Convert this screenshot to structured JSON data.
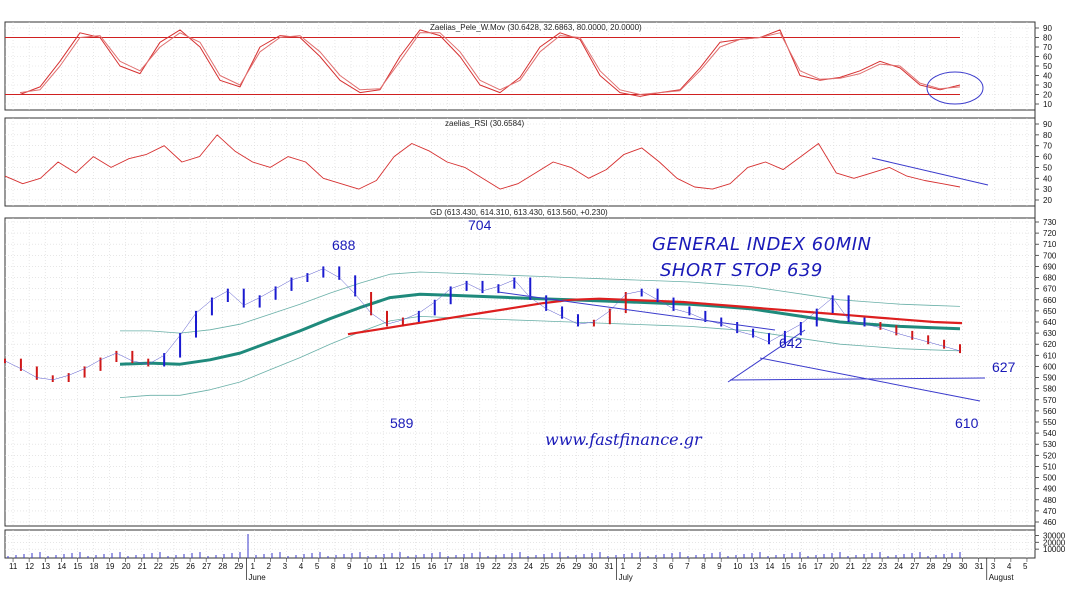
{
  "chart_data": [
    {
      "type": "line",
      "title": "Zaelias_Pele_W.Mov (30.6428, 32.6863, 80.0000, 20.0000)",
      "ylim": [
        10,
        90
      ],
      "yticks": [
        "10",
        "20",
        "30",
        "40",
        "50",
        "60",
        "70",
        "80",
        "90"
      ],
      "series": [
        {
          "values": [
            20,
            28,
            55,
            85,
            80,
            50,
            42,
            75,
            88,
            70,
            35,
            28,
            70,
            82,
            80,
            60,
            35,
            22,
            25,
            60,
            88,
            82,
            60,
            30,
            22,
            38,
            70,
            85,
            78,
            40,
            22,
            18,
            22,
            25,
            48,
            75,
            78,
            80,
            88,
            40,
            35,
            38,
            45,
            55,
            48,
            30,
            25,
            30
          ]
        },
        {
          "values": [
            22,
            25,
            50,
            80,
            82,
            55,
            45,
            70,
            85,
            75,
            40,
            30,
            65,
            80,
            82,
            65,
            40,
            25,
            26,
            55,
            85,
            85,
            65,
            35,
            25,
            35,
            65,
            82,
            80,
            45,
            25,
            20,
            22,
            24,
            45,
            70,
            78,
            80,
            85,
            45,
            36,
            37,
            42,
            52,
            50,
            32,
            26,
            28
          ]
        }
      ],
      "hlines": [
        20,
        80
      ],
      "grid": true
    },
    {
      "type": "line",
      "title": "zaelias_RSI (30.6584)",
      "ylim": [
        20,
        90
      ],
      "yticks": [
        "20",
        "30",
        "40",
        "50",
        "60",
        "70",
        "80",
        "90"
      ],
      "series": [
        {
          "values": [
            42,
            35,
            40,
            55,
            45,
            60,
            50,
            58,
            62,
            70,
            55,
            60,
            80,
            65,
            55,
            50,
            60,
            55,
            40,
            35,
            30,
            38,
            60,
            72,
            65,
            55,
            50,
            40,
            30,
            35,
            45,
            55,
            50,
            40,
            48,
            62,
            68,
            55,
            40,
            32,
            30,
            35,
            50,
            55,
            48,
            60,
            72,
            45,
            40,
            45,
            50,
            42,
            38,
            35,
            32
          ]
        }
      ],
      "grid": true
    },
    {
      "type": "line",
      "title": "GD (613.430, 614.310, 613.430, 613.560, +0.230)",
      "ylim": [
        460,
        730
      ],
      "yticks": [
        "460",
        "470",
        "480",
        "490",
        "500",
        "510",
        "520",
        "530",
        "540",
        "550",
        "560",
        "570",
        "580",
        "590",
        "600",
        "610",
        "620",
        "630",
        "640",
        "650",
        "660",
        "670",
        "680",
        "690",
        "700",
        "710",
        "720",
        "730"
      ],
      "series": [
        {
          "values": [
            605,
            598,
            590,
            588,
            592,
            598,
            606,
            612,
            605,
            602,
            610,
            628,
            648,
            660,
            668,
            655,
            662,
            670,
            678,
            682,
            688,
            680,
            665,
            648,
            638,
            642,
            648,
            658,
            670,
            675,
            668,
            672,
            678,
            662,
            652,
            645,
            638,
            640,
            650,
            665,
            668,
            660,
            652,
            648,
            642,
            638,
            632,
            628,
            622,
            630,
            638,
            650,
            662,
            642,
            638,
            635,
            630,
            626,
            622,
            618,
            614
          ]
        },
        {
          "values": [
            602,
            603,
            602,
            606,
            612,
            622,
            632,
            643,
            653,
            662,
            665,
            664,
            663,
            662,
            661,
            660,
            659,
            658,
            657,
            656,
            654,
            652,
            648,
            644,
            640,
            638,
            636,
            635,
            634
          ]
        },
        {
          "values": [
            629,
            633,
            637,
            641,
            645,
            649,
            653,
            657,
            660,
            661,
            660,
            659,
            658,
            656,
            654,
            652,
            650,
            648,
            646,
            644,
            642,
            640,
            639
          ]
        }
      ],
      "annotations": [
        "688",
        "704",
        "589",
        "642",
        "627",
        "610",
        "GENERAL INDEX 60MIN",
        "SHORT STOP 639",
        "www.fastfinance.gr"
      ],
      "grid": true
    },
    {
      "type": "bar",
      "ylim": [
        0,
        35000
      ],
      "yticks": [
        "10000",
        "20000",
        "30000"
      ],
      "unit": "x10000",
      "grid": true
    }
  ],
  "x_axis": {
    "days": [
      "11",
      "12",
      "13",
      "14",
      "15",
      "18",
      "19",
      "20",
      "21",
      "22",
      "25",
      "26",
      "27",
      "28",
      "29",
      "1",
      "2",
      "3",
      "4",
      "5",
      "8",
      "9",
      "10",
      "11",
      "12",
      "15",
      "16",
      "17",
      "18",
      "19",
      "22",
      "23",
      "24",
      "25",
      "26",
      "29",
      "30",
      "31",
      "1",
      "2",
      "3",
      "6",
      "7",
      "8",
      "9",
      "10",
      "13",
      "14",
      "15",
      "16",
      "17",
      "20",
      "21",
      "22",
      "23",
      "24",
      "27",
      "28",
      "29",
      "30",
      "31",
      "3",
      "4",
      "5"
    ],
    "months": [
      "June",
      "July",
      "August"
    ]
  }
}
